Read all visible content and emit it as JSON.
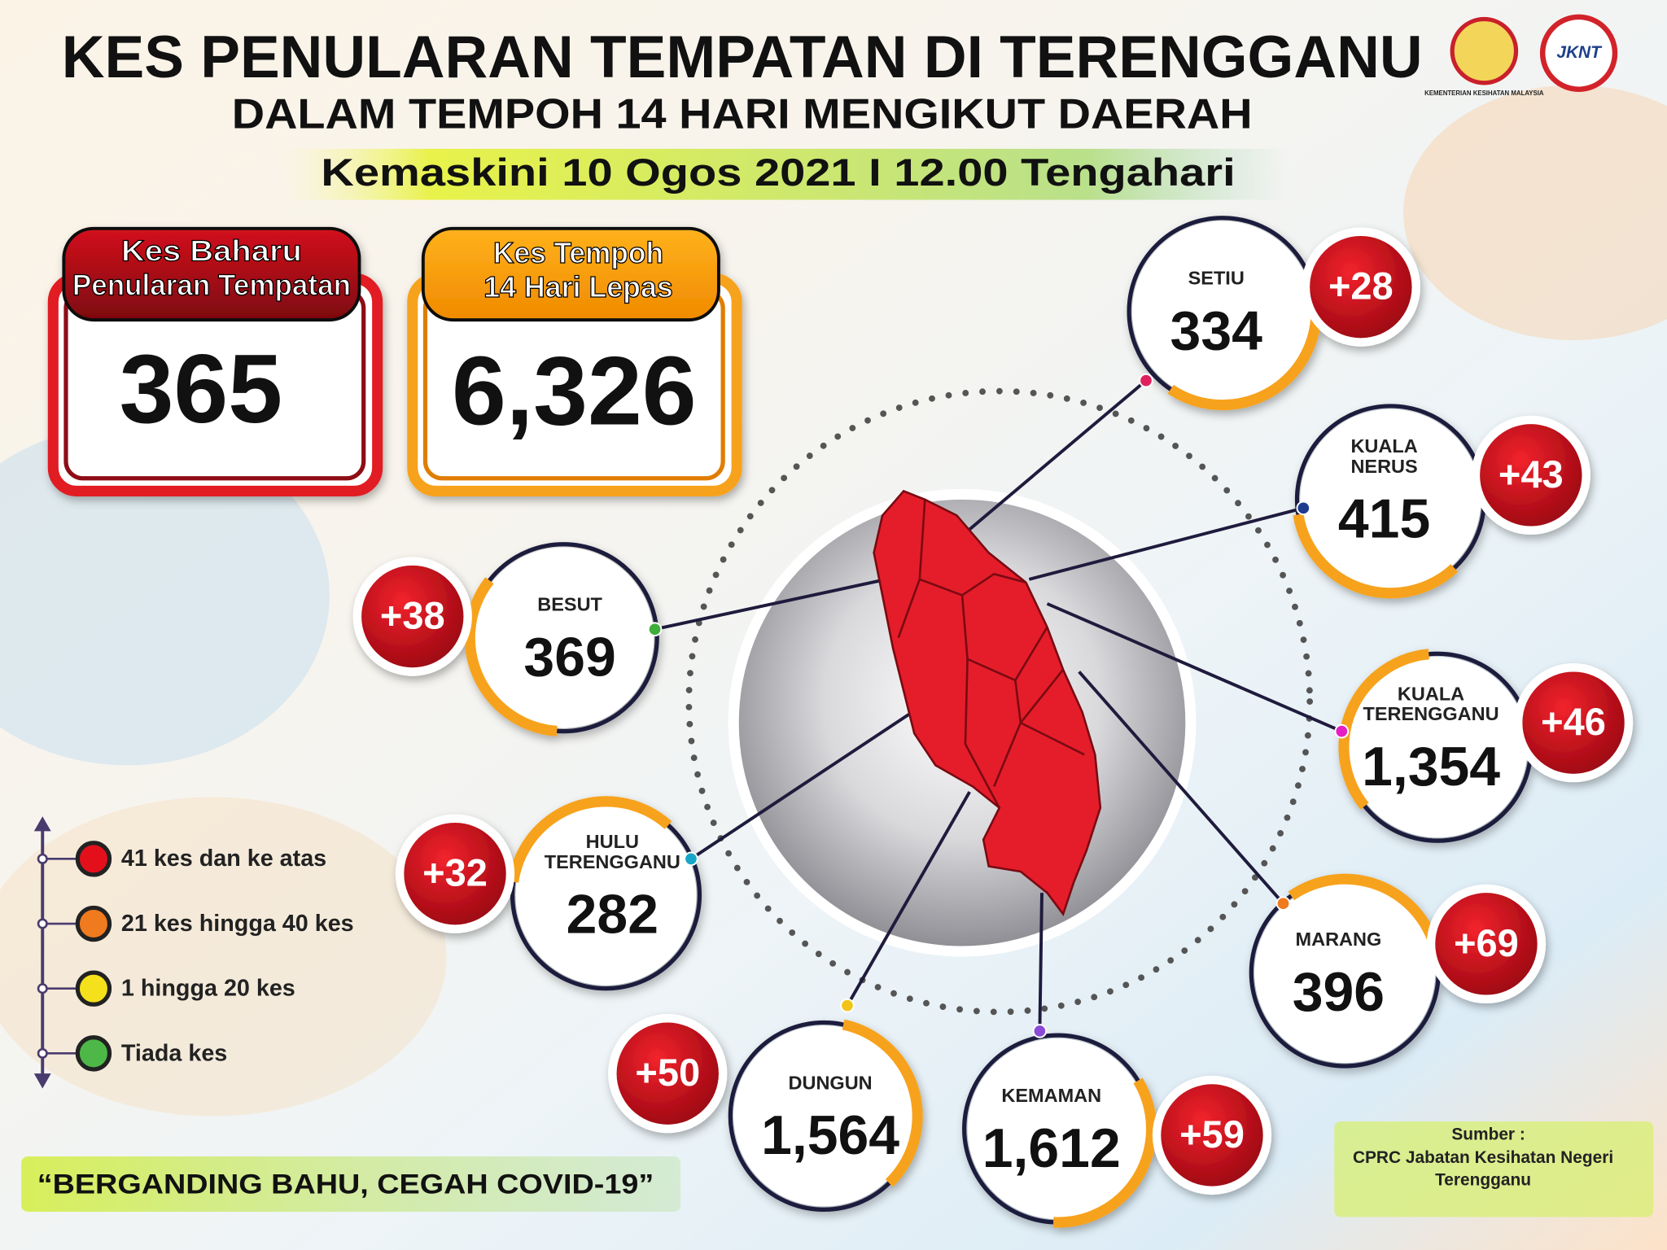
{
  "header": {
    "title": "KES PENULARAN TEMPATAN DI TERENGGANU",
    "subtitle": "DALAM TEMPOH 14 HARI MENGIKUT DAERAH",
    "updated": "Kemaskini 10 Ogos 2021 I 12.00 Tengahari"
  },
  "logos": [
    "KEMENTERIAN KESIHATAN MALAYSIA",
    "JKNT"
  ],
  "summary": [
    {
      "label_lines": [
        "Kes Baharu",
        "Penularan Tempatan"
      ],
      "value": "365"
    },
    {
      "label_lines": [
        "Kes Tempoh",
        "14 Hari Lepas"
      ],
      "value": "6,326"
    }
  ],
  "districts": [
    {
      "name_lines": [
        "SETIU"
      ],
      "total": "334",
      "new": "+28"
    },
    {
      "name_lines": [
        "KUALA",
        "NERUS"
      ],
      "total": "415",
      "new": "+43"
    },
    {
      "name_lines": [
        "BESUT"
      ],
      "total": "369",
      "new": "+38"
    },
    {
      "name_lines": [
        "KUALA",
        "TERENGGANU"
      ],
      "total": "1,354",
      "new": "+46"
    },
    {
      "name_lines": [
        "HULU",
        "TERENGGANU"
      ],
      "total": "282",
      "new": "+32"
    },
    {
      "name_lines": [
        "MARANG"
      ],
      "total": "396",
      "new": "+69"
    },
    {
      "name_lines": [
        "DUNGUN"
      ],
      "total": "1,564",
      "new": "+50"
    },
    {
      "name_lines": [
        "KEMAMAN"
      ],
      "total": "1,612",
      "new": "+59"
    }
  ],
  "legend": [
    {
      "label": "41 kes dan ke atas",
      "color": "#e3101c"
    },
    {
      "label": "21 kes hingga 40 kes",
      "color": "#f07a1e"
    },
    {
      "label": "1 hingga 20 kes",
      "color": "#f5e11b"
    },
    {
      "label": "Tiada kes",
      "color": "#4db848"
    }
  ],
  "slogan": "“BERGANDING BAHU, CEGAH COVID-19”",
  "source": {
    "label": "Sumber :",
    "lines": [
      "CPRC Jabatan Kesihatan Negeri",
      "Terengganu"
    ]
  }
}
